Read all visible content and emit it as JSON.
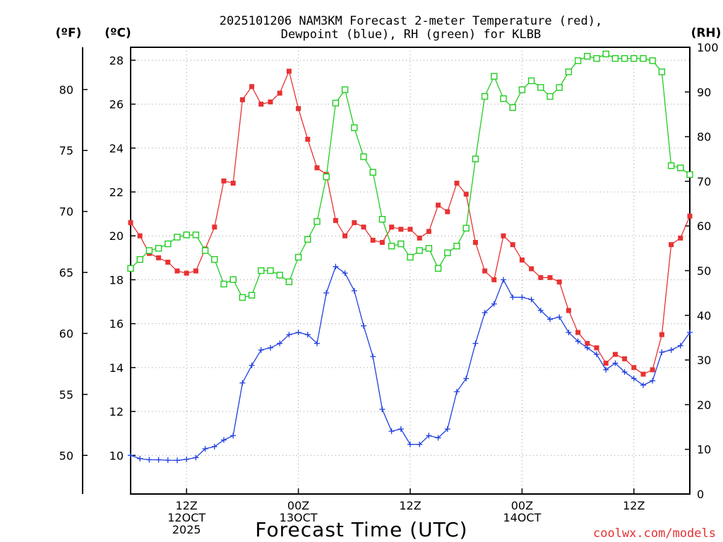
{
  "header": {
    "title_line1": "2025101206 NAM3KM Forecast 2-meter Temperature (red),",
    "title_line2": "Dewpoint (blue), RH (green) for KLBB",
    "unit_f": "(ºF)",
    "unit_c": "(ºC)",
    "unit_rh": "(RH)"
  },
  "footer": {
    "credit": "coolwx.com/models"
  },
  "chart_data": {
    "type": "line",
    "title": "2025101206 NAM3KM Forecast 2-meter Temperature (red), Dewpoint (blue), RH (green) for KLBB",
    "xlabel": "Forecast Time (UTC)",
    "x_unit": "forecast hour",
    "xlim": [
      0,
      60
    ],
    "x_ticks": [
      {
        "x": 6,
        "lines": [
          "12Z",
          "12OCT",
          "2025"
        ]
      },
      {
        "x": 18,
        "lines": [
          "00Z",
          "13OCT"
        ]
      },
      {
        "x": 30,
        "lines": [
          "12Z"
        ]
      },
      {
        "x": 42,
        "lines": [
          "00Z",
          "14OCT"
        ]
      },
      {
        "x": 54,
        "lines": [
          "12Z"
        ]
      }
    ],
    "y_left_c": {
      "label": "(ºC)",
      "range": [
        8.24,
        28.59
      ],
      "ticks": [
        10,
        12,
        14,
        16,
        18,
        20,
        22,
        24,
        26,
        28
      ]
    },
    "y_left_f": {
      "label": "(ºF)",
      "ticks": [
        50,
        55,
        60,
        65,
        70,
        75,
        80
      ]
    },
    "y_right_rh": {
      "label": "(RH)",
      "range": [
        0,
        100
      ],
      "ticks": [
        0,
        10,
        20,
        30,
        40,
        50,
        60,
        70,
        80,
        90,
        100
      ]
    },
    "colors": {
      "temperature": "#e83232",
      "dewpoint": "#2040e0",
      "rh": "#22cc22"
    },
    "x": [
      0,
      1,
      2,
      3,
      4,
      5,
      6,
      7,
      8,
      9,
      10,
      11,
      12,
      13,
      14,
      15,
      16,
      17,
      18,
      19,
      20,
      21,
      22,
      23,
      24,
      25,
      26,
      27,
      28,
      29,
      30,
      31,
      32,
      33,
      34,
      35,
      36,
      37,
      38,
      39,
      40,
      41,
      42,
      43,
      44,
      45,
      46,
      47,
      48,
      49,
      50,
      51,
      52,
      53,
      54,
      55,
      56,
      57,
      58,
      59,
      60
    ],
    "series": [
      {
        "name": "Temperature",
        "axis": "celsius",
        "marker": "filled-square",
        "values": [
          20.6,
          20.0,
          19.2,
          19.0,
          18.8,
          18.4,
          18.3,
          18.4,
          19.4,
          20.4,
          22.5,
          22.4,
          26.2,
          26.8,
          26.0,
          26.1,
          26.5,
          27.5,
          25.8,
          24.4,
          23.1,
          22.8,
          20.7,
          20.0,
          20.6,
          20.4,
          19.8,
          19.7,
          20.4,
          20.3,
          20.3,
          19.9,
          20.2,
          21.4,
          21.1,
          22.4,
          21.9,
          19.7,
          18.4,
          18.0,
          20.0,
          19.6,
          18.9,
          18.5,
          18.1,
          18.1,
          17.9,
          16.6,
          15.6,
          15.1,
          14.9,
          14.2,
          14.6,
          14.4,
          14.0,
          13.7,
          13.9,
          15.5,
          19.6,
          19.9,
          20.9
        ]
      },
      {
        "name": "Dewpoint",
        "axis": "celsius",
        "marker": "plus",
        "values": [
          10.0,
          9.85,
          9.8,
          9.8,
          9.78,
          9.77,
          9.82,
          9.9,
          10.3,
          10.4,
          10.7,
          10.9,
          13.3,
          14.1,
          14.8,
          14.9,
          15.1,
          15.5,
          15.6,
          15.5,
          15.1,
          17.4,
          18.6,
          18.3,
          17.5,
          15.9,
          14.5,
          12.1,
          11.1,
          11.2,
          10.5,
          10.5,
          10.9,
          10.8,
          11.2,
          12.9,
          13.5,
          15.1,
          16.5,
          16.9,
          18.0,
          17.2,
          17.2,
          17.1,
          16.6,
          16.2,
          16.3,
          15.6,
          15.2,
          14.9,
          14.6,
          13.9,
          14.2,
          13.8,
          13.5,
          13.2,
          13.4,
          14.7,
          14.8,
          15.0,
          15.6
        ]
      },
      {
        "name": "RH",
        "axis": "rh",
        "marker": "open-square",
        "values": [
          50.5,
          52.5,
          54.5,
          55,
          56,
          57.5,
          58,
          58,
          54.5,
          52.5,
          47,
          48,
          44,
          44.5,
          50,
          50,
          49,
          47.5,
          53,
          57,
          61,
          71,
          87.5,
          90.5,
          82,
          75.5,
          72,
          61.5,
          55.5,
          56,
          53,
          54.5,
          55,
          50.5,
          54,
          55.5,
          59.5,
          75,
          89,
          93.5,
          88.5,
          86.5,
          90.5,
          92.5,
          91,
          89,
          91,
          94.5,
          97,
          98,
          97.5,
          98.5,
          97.5,
          97.5,
          97.5,
          97.5,
          97,
          94.5,
          73.5,
          73,
          71.5
        ]
      }
    ]
  }
}
